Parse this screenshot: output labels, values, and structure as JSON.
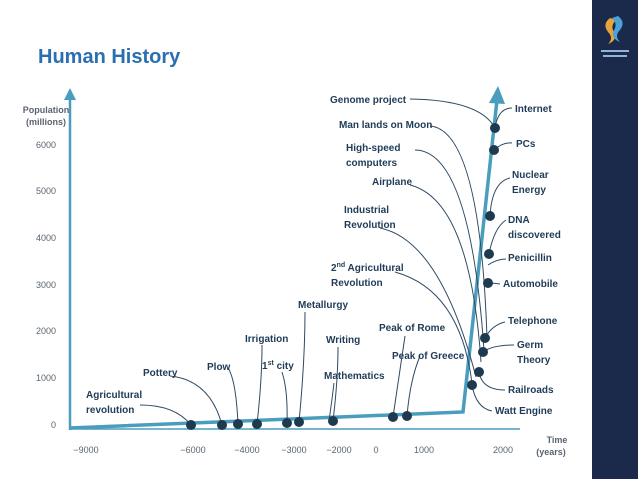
{
  "header": {
    "title": "Human History"
  },
  "axes": {
    "y_title": [
      "Population",
      "(millions)"
    ],
    "x_title": [
      "Time",
      "(years)"
    ],
    "y_ticks": [
      "0",
      "1000",
      "2000",
      "3000",
      "4000",
      "5000",
      "6000"
    ],
    "x_ticks": [
      "−9000",
      "−6000",
      "−4000",
      "−3000",
      "−2000",
      "0",
      "1000",
      "2000"
    ]
  },
  "events": [
    {
      "lines": [
        [
          "Agricultural"
        ],
        [
          "revolution"
        ]
      ]
    },
    {
      "lines": [
        [
          "Pottery"
        ]
      ]
    },
    {
      "lines": [
        [
          "Plow"
        ]
      ]
    },
    {
      "lines": [
        [
          "Irrigation"
        ]
      ]
    },
    {
      "lines": [
        [
          "1",
          {
            "text": "st",
            "sup": true
          },
          " city"
        ]
      ]
    },
    {
      "lines": [
        [
          "Metallurgy"
        ]
      ]
    },
    {
      "lines": [
        [
          "Writing"
        ]
      ]
    },
    {
      "lines": [
        [
          "Mathematics"
        ]
      ]
    },
    {
      "lines": [
        [
          "Peak of Greece"
        ]
      ]
    },
    {
      "lines": [
        [
          "Peak of Rome"
        ]
      ]
    },
    {
      "lines": [
        [
          "2",
          {
            "text": "nd",
            "sup": true
          },
          " Agricultural"
        ],
        [
          "Revolution"
        ]
      ]
    },
    {
      "lines": [
        [
          "Industrial"
        ],
        [
          "Revolution"
        ]
      ]
    },
    {
      "lines": [
        [
          "Airplane"
        ]
      ]
    },
    {
      "lines": [
        [
          "High-speed"
        ],
        [
          "computers"
        ]
      ]
    },
    {
      "lines": [
        [
          "Man lands on Moon"
        ]
      ]
    },
    {
      "lines": [
        [
          "Genome project"
        ]
      ]
    },
    {
      "lines": [
        [
          "Internet"
        ]
      ]
    },
    {
      "lines": [
        [
          "PCs"
        ]
      ]
    },
    {
      "lines": [
        [
          "Nuclear"
        ],
        [
          "Energy"
        ]
      ]
    },
    {
      "lines": [
        [
          "DNA"
        ],
        [
          "discovered"
        ]
      ]
    },
    {
      "lines": [
        [
          "Penicillin"
        ]
      ]
    },
    {
      "lines": [
        [
          "Automobile"
        ]
      ]
    },
    {
      "lines": [
        [
          "Telephone"
        ]
      ]
    },
    {
      "lines": [
        [
          "Germ"
        ],
        [
          "Theory"
        ]
      ]
    },
    {
      "lines": [
        [
          "Railroads"
        ]
      ]
    },
    {
      "lines": [
        [
          "Watt Engine"
        ]
      ]
    }
  ]
}
